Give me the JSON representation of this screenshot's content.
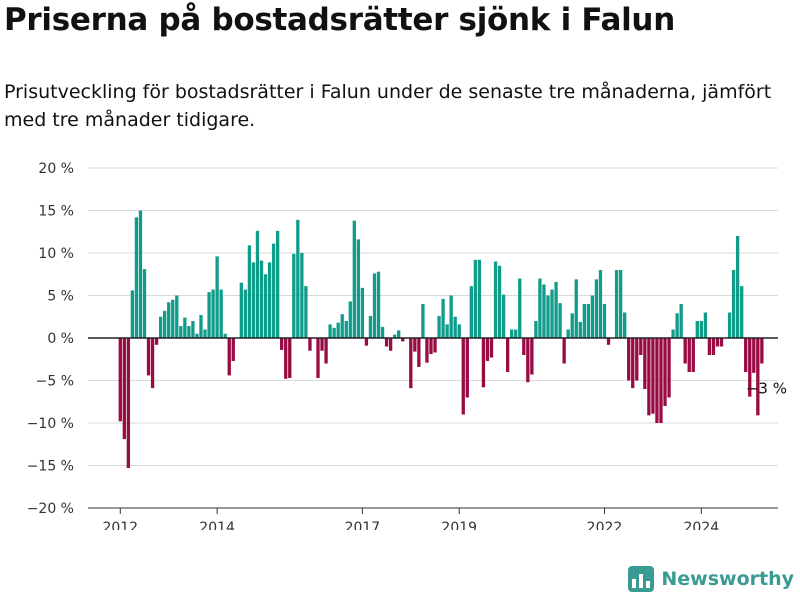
{
  "chart_data": {
    "type": "bar",
    "title": "Priserna på bostadsrätter sjönk i Falun",
    "subtitle": "Prisutveckling för bostadsrätter i Falun under de senaste tre månaderna, jämfört med tre månader tidigare.",
    "y_ticks": [
      "20 %",
      "15 %",
      "10 %",
      "5 %",
      "0 %",
      "−5 %",
      "−10 %",
      "−15 %",
      "−20 %"
    ],
    "ylim": [
      -20,
      20
    ],
    "x_ticks": [
      {
        "label": "2012",
        "year": 2012
      },
      {
        "label": "2014",
        "year": 2014
      },
      {
        "label": "2017",
        "year": 2017
      },
      {
        "label": "2019",
        "year": 2019
      },
      {
        "label": "2022",
        "year": 2022
      },
      {
        "label": "2024",
        "year": 2024
      }
    ],
    "x_start": "2011-05",
    "x_end": "2025-08",
    "first_bar": "2012-01",
    "colors": {
      "positive": "#0f9d8a",
      "negative": "#9a0a43",
      "grid": "#d9d9d9",
      "zero": "#222222"
    },
    "values": [
      -9.8,
      -11.9,
      -15.3,
      5.6,
      14.2,
      15.0,
      8.1,
      -4.4,
      -5.9,
      -0.8,
      2.5,
      3.2,
      4.2,
      4.5,
      5.0,
      1.4,
      2.4,
      1.4,
      2.0,
      0.5,
      2.7,
      1.0,
      5.4,
      5.7,
      9.6,
      5.7,
      0.5,
      -4.4,
      -2.7,
      0.0,
      6.5,
      5.7,
      10.9,
      8.9,
      12.6,
      9.1,
      7.5,
      8.9,
      11.1,
      12.6,
      -1.4,
      -4.8,
      -4.7,
      9.9,
      13.9,
      10.0,
      6.1,
      -1.5,
      0.0,
      -4.7,
      -1.5,
      -3.0,
      1.6,
      1.2,
      1.8,
      2.8,
      2.0,
      4.3,
      13.8,
      11.6,
      5.9,
      -0.9,
      2.6,
      7.6,
      7.8,
      1.3,
      -1.0,
      -1.5,
      0.4,
      0.9,
      -0.4,
      0.0,
      -5.9,
      -1.6,
      -3.4,
      4.0,
      -2.9,
      -1.9,
      -1.7,
      2.6,
      4.6,
      1.6,
      5.0,
      2.5,
      1.6,
      -9.0,
      -7.0,
      6.1,
      9.2,
      9.2,
      -5.8,
      -2.7,
      -2.3,
      9.0,
      8.5,
      5.1,
      -4.0,
      1.0,
      1.0,
      7.0,
      -2.0,
      -5.2,
      -4.3,
      2.0,
      7.0,
      6.3,
      5.0,
      5.7,
      6.6,
      4.1,
      -3.0,
      1.0,
      2.9,
      6.9,
      1.9,
      4.0,
      4.0,
      5.0,
      6.9,
      8.0,
      4.0,
      -0.8,
      0.0,
      8.0,
      8.0,
      3.0,
      -5.0,
      -5.9,
      -5.0,
      -2.0,
      -6.0,
      -9.1,
      -8.9,
      -10.0,
      -10.0,
      -8.0,
      -7.0,
      1.0,
      2.9,
      4.0,
      -3.0,
      -4.0,
      -4.0,
      2.0,
      2.0,
      3.0,
      -2.0,
      -2.0,
      -1.0,
      -1.0,
      0.0,
      3.0,
      8.0,
      12.0,
      6.1,
      -4.0,
      -6.9,
      -4.1,
      -9.1,
      -3.0
    ],
    "annotation": {
      "label": "−3 %",
      "index": 159
    }
  },
  "brand": {
    "name": "Newsworthy",
    "icon": "bar-chart-logo-icon"
  }
}
